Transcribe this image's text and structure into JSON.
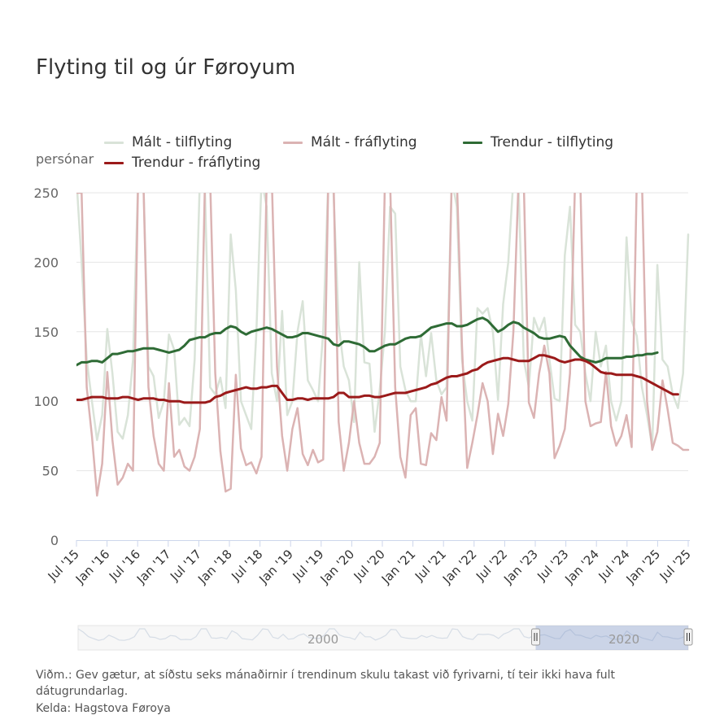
{
  "title": "Flyting til og úr Føroyum",
  "legend": [
    {
      "label": "Mált - tilflyting",
      "color": "#d9e3d8"
    },
    {
      "label": "Mált - fráflyting",
      "color": "#dbb3b3"
    },
    {
      "label": "Trendur - tilflyting",
      "color": "#2e6b35"
    },
    {
      "label": "Trendur - fráflyting",
      "color": "#9b1a1a"
    }
  ],
  "notes": {
    "remark_line1": "Viðm.: Gev gætur, at síðstu seks mánaðirnir í trendinum skulu takast við fyrivarni, tí teir ikki hava fult",
    "remark_line2": "dátugrundarlag.",
    "source": "Kelda: Hagstova Føroya"
  },
  "navigator": {
    "label_2000": "2000",
    "label_2020": "2020",
    "range_start": 0.75,
    "range_end": 1.0
  },
  "chart_data": {
    "type": "line",
    "ylabel": "persónar",
    "ylim": [
      0,
      250
    ],
    "yticks": [
      "0",
      "50",
      "100",
      "150",
      "200",
      "250"
    ],
    "xlim": [
      "2015-07",
      "2025-07"
    ],
    "xticks": [
      "Jul '15",
      "Jan '16",
      "Jul '16",
      "Jan '17",
      "Jul '17",
      "Jan '18",
      "Jul '18",
      "Jan '19",
      "Jul '19",
      "Jan '20",
      "Jul '20",
      "Jan '21",
      "Jul '21",
      "Jan '22",
      "Jul '22",
      "Jan '23",
      "Jul '23",
      "Jan '24",
      "Jul '24",
      "Jan '25",
      "Jul '25"
    ],
    "grid": true,
    "legend_position": "top",
    "series": [
      {
        "name": "Mált - tilflyting",
        "color": "#d9e3d8",
        "values": [
          260,
          200,
          130,
          100,
          72,
          90,
          152,
          120,
          78,
          73,
          90,
          130,
          260,
          260,
          125,
          118,
          88,
          100,
          148,
          137,
          83,
          88,
          82,
          130,
          260,
          250,
          110,
          105,
          117,
          95,
          220,
          180,
          100,
          90,
          80,
          150,
          260,
          240,
          120,
          100,
          165,
          90,
          100,
          150,
          172,
          115,
          108,
          100,
          150,
          260,
          250,
          155,
          125,
          115,
          85,
          200,
          128,
          127,
          78,
          108,
          150,
          240,
          235,
          125,
          108,
          100,
          100,
          148,
          118,
          149,
          115,
          105,
          110,
          260,
          240,
          130,
          100,
          86,
          167,
          163,
          167,
          150,
          101,
          170,
          200,
          260,
          255,
          130,
          110,
          160,
          150,
          160,
          130,
          102,
          100,
          205,
          240,
          155,
          150,
          120,
          100,
          150,
          125,
          140,
          100,
          86,
          100,
          218,
          158,
          147,
          110,
          90,
          67,
          198,
          130,
          125,
          105,
          95,
          120,
          220
        ]
      },
      {
        "name": "Mált - fráflyting",
        "color": "#dbb3b3",
        "values": [
          250,
          250,
          110,
          75,
          32,
          55,
          121,
          72,
          40,
          45,
          55,
          50,
          260,
          260,
          110,
          75,
          55,
          50,
          113,
          60,
          65,
          53,
          50,
          60,
          80,
          260,
          260,
          120,
          64,
          35,
          37,
          119,
          66,
          54,
          56,
          48,
          60,
          260,
          260,
          125,
          75,
          50,
          80,
          95,
          62,
          54,
          65,
          56,
          58,
          260,
          260,
          85,
          50,
          70,
          100,
          70,
          55,
          55,
          60,
          70,
          260,
          260,
          110,
          60,
          45,
          90,
          95,
          55,
          54,
          77,
          72,
          103,
          86,
          260,
          260,
          140,
          52,
          70,
          90,
          113,
          100,
          62,
          91,
          75,
          98,
          150,
          260,
          260,
          99,
          88,
          120,
          140,
          120,
          59,
          68,
          80,
          120,
          260,
          260,
          100,
          82,
          84,
          85,
          121,
          82,
          68,
          75,
          90,
          67,
          260,
          260,
          100,
          65,
          78,
          115,
          94,
          70,
          68,
          65,
          65
        ]
      },
      {
        "name": "Trendur - tilflyting",
        "color": "#2e6b35",
        "values": [
          126,
          128,
          128,
          129,
          129,
          128,
          131,
          134,
          134,
          135,
          136,
          136,
          137,
          138,
          138,
          138,
          137,
          136,
          135,
          136,
          137,
          140,
          144,
          145,
          146,
          146,
          148,
          149,
          149,
          152,
          154,
          153,
          150,
          148,
          150,
          151,
          152,
          153,
          152,
          150,
          148,
          146,
          146,
          147,
          149,
          149,
          148,
          147,
          146,
          145,
          141,
          140,
          143,
          143,
          142,
          141,
          139,
          136,
          136,
          138,
          140,
          141,
          141,
          143,
          145,
          146,
          146,
          147,
          150,
          153,
          154,
          155,
          156,
          156,
          154,
          154,
          155,
          157,
          159,
          160,
          158,
          154,
          150,
          152,
          155,
          157,
          156,
          153,
          151,
          149,
          146,
          145,
          145,
          146,
          147,
          146,
          140,
          136,
          132,
          130,
          129,
          128,
          129,
          131,
          131,
          131,
          131,
          132,
          132,
          133,
          133,
          134,
          134,
          135
        ]
      },
      {
        "name": "Trendur - fráflyting",
        "color": "#9b1a1a",
        "values": [
          101,
          101,
          102,
          103,
          103,
          103,
          102,
          102,
          102,
          103,
          103,
          102,
          101,
          102,
          102,
          102,
          101,
          101,
          100,
          100,
          100,
          99,
          99,
          99,
          99,
          99,
          100,
          103,
          104,
          106,
          107,
          108,
          109,
          110,
          109,
          109,
          110,
          110,
          111,
          111,
          106,
          101,
          101,
          102,
          102,
          101,
          102,
          102,
          102,
          102,
          103,
          106,
          106,
          103,
          103,
          103,
          104,
          104,
          103,
          103,
          104,
          105,
          106,
          106,
          106,
          107,
          108,
          109,
          110,
          112,
          113,
          115,
          117,
          118,
          118,
          119,
          120,
          122,
          123,
          126,
          128,
          129,
          130,
          131,
          131,
          130,
          129,
          129,
          129,
          131,
          133,
          133,
          132,
          131,
          129,
          128,
          129,
          130,
          130,
          129,
          127,
          124,
          121,
          120,
          120,
          119,
          119,
          119,
          119,
          118,
          117,
          115,
          113,
          111,
          109,
          107,
          105,
          105
        ]
      }
    ]
  }
}
